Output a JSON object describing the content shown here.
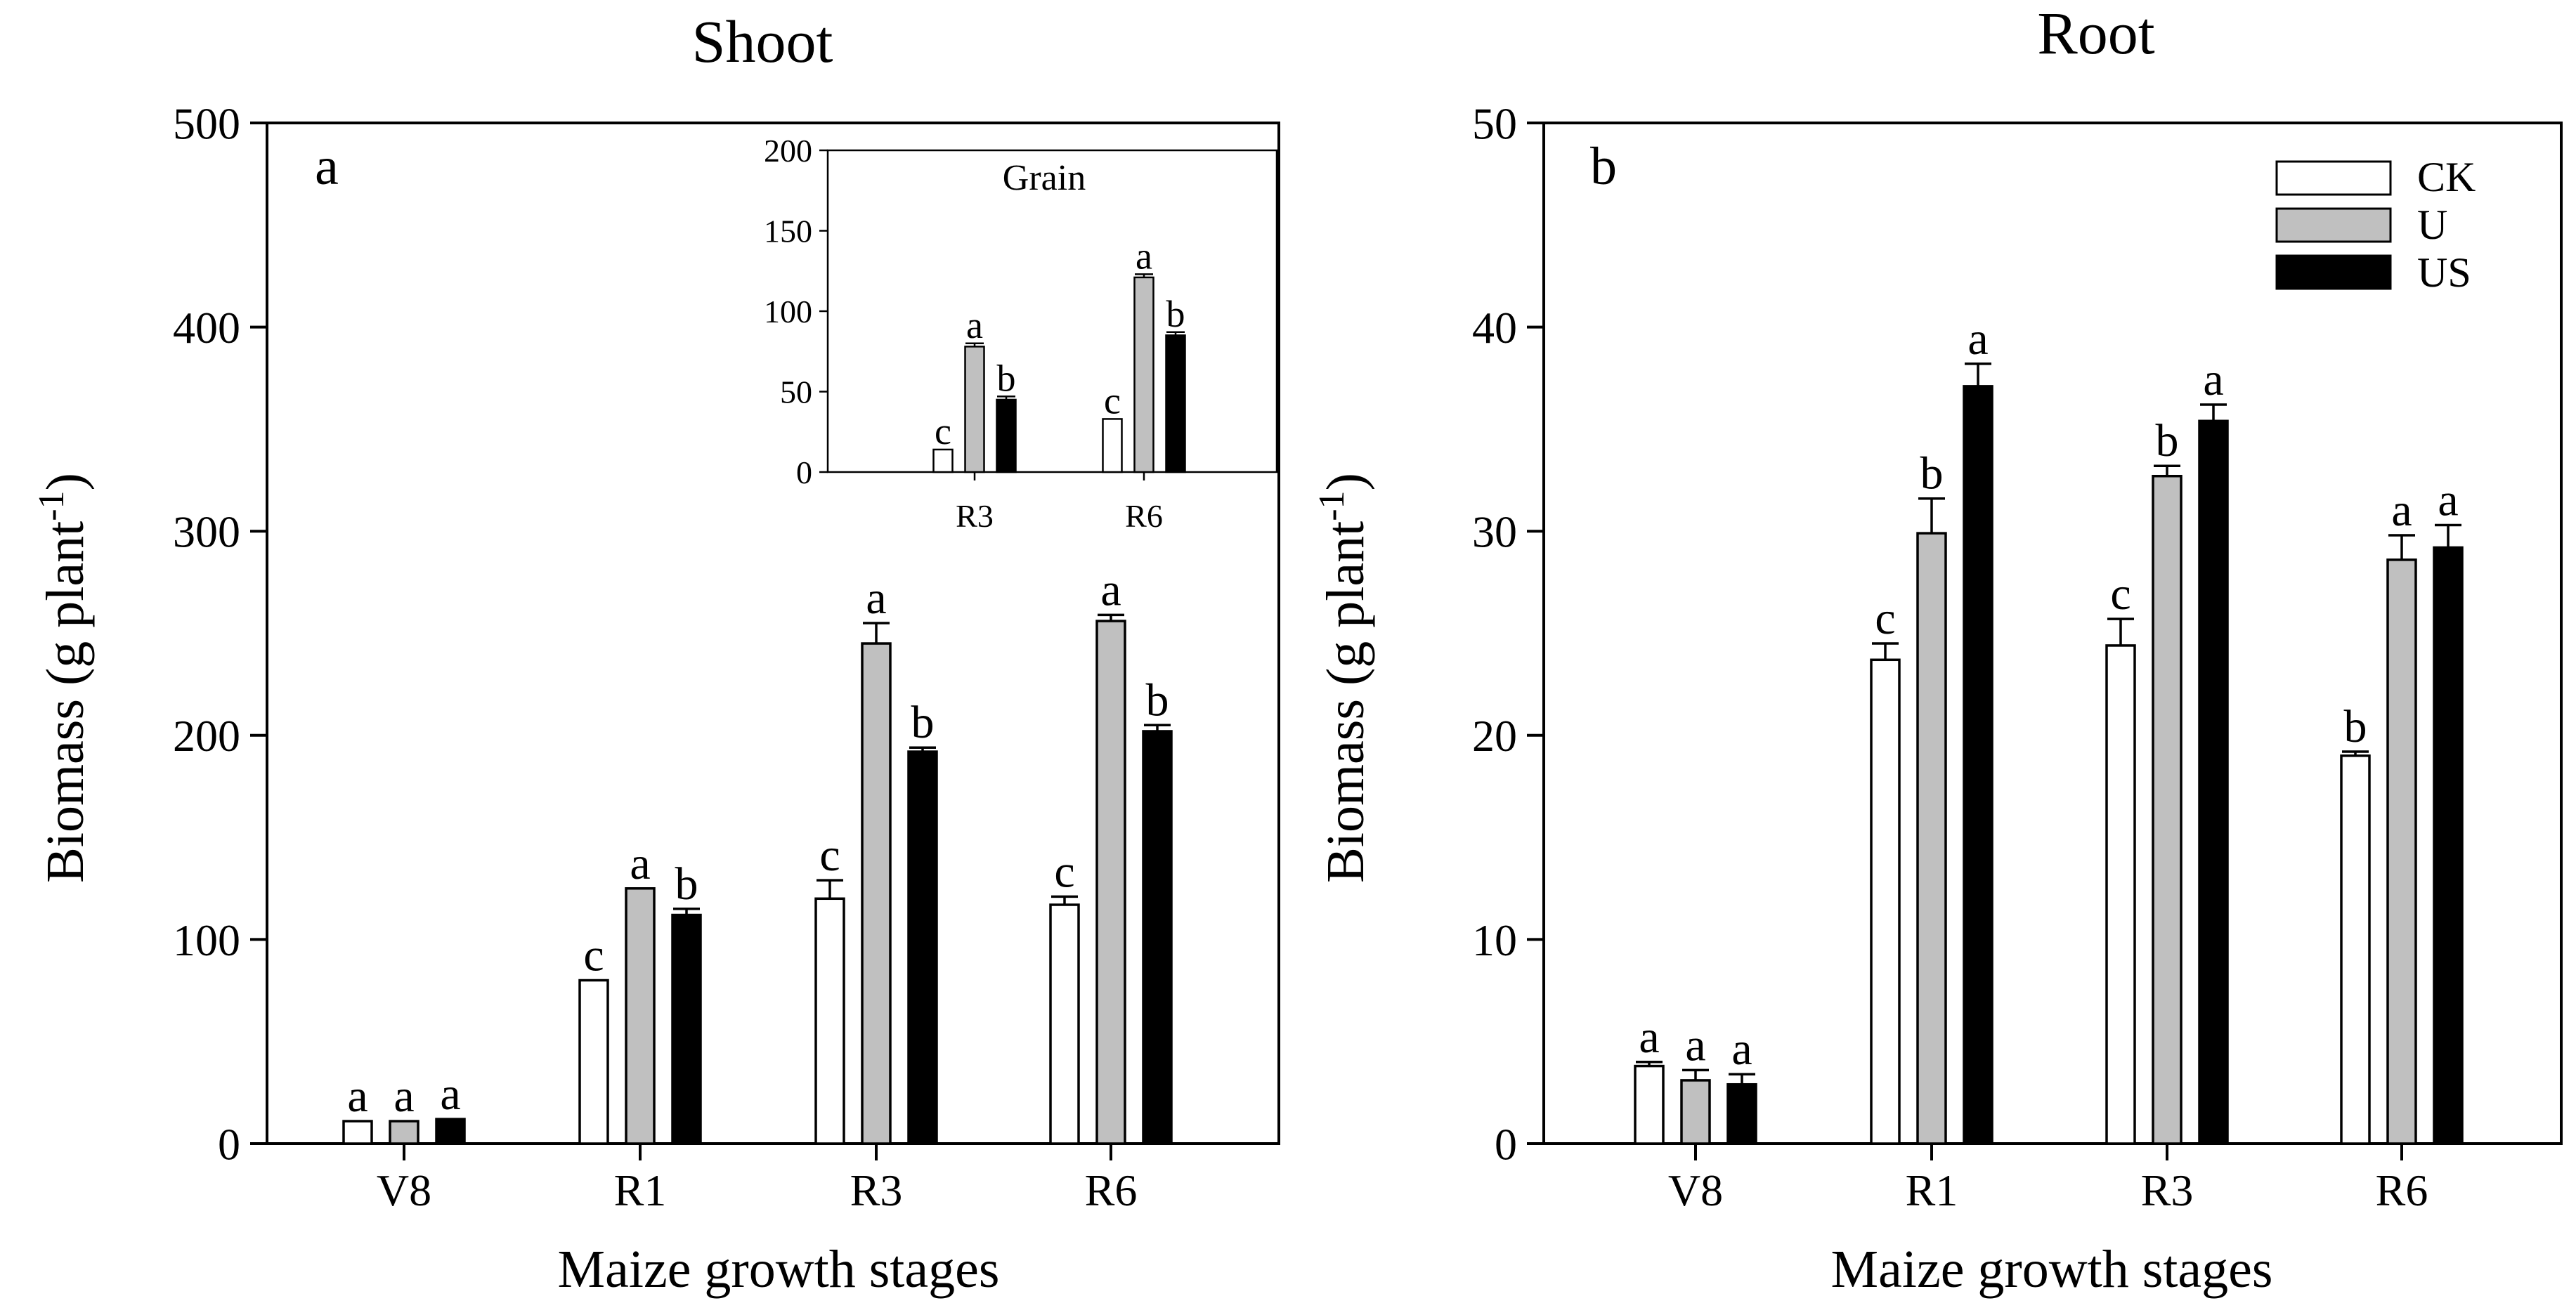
{
  "colors": {
    "CK": "#ffffff",
    "U": "#c0c0c0",
    "US": "#000000",
    "axis": "#000000"
  },
  "legend": {
    "entries": [
      {
        "key": "CK",
        "label": "CK"
      },
      {
        "key": "U",
        "label": "U"
      },
      {
        "key": "US",
        "label": "US"
      }
    ]
  },
  "chart_data": [
    {
      "id": "shoot",
      "type": "bar",
      "title": "Shoot",
      "panel_letter": "a",
      "xlabel": "Maize growth stages",
      "ylabel": "Biomass (g plant",
      "ylabel_sup": "-1",
      "ylabel_close": ")",
      "ylim": [
        0,
        500
      ],
      "yticks": [
        0,
        100,
        200,
        300,
        400,
        500
      ],
      "ytick_labels": [
        "0",
        "100",
        "200",
        "300",
        "400",
        "500"
      ],
      "categories": [
        "V8",
        "R1",
        "R3",
        "R6"
      ],
      "series": [
        {
          "name": "CK",
          "values": [
            11,
            80,
            120,
            117
          ],
          "errors": [
            0,
            0,
            9,
            4
          ],
          "letters": [
            "a",
            "c",
            "c",
            "c"
          ]
        },
        {
          "name": "U",
          "values": [
            11,
            125,
            245,
            256
          ],
          "errors": [
            0,
            0,
            10,
            3
          ],
          "letters": [
            "a",
            "a",
            "a",
            "a"
          ]
        },
        {
          "name": "US",
          "values": [
            12,
            112,
            192,
            202
          ],
          "errors": [
            0,
            3,
            2,
            3
          ],
          "letters": [
            "a",
            "b",
            "b",
            "b"
          ]
        }
      ]
    },
    {
      "id": "grain",
      "type": "bar",
      "title": "Grain",
      "inset_of": "shoot",
      "ylim": [
        0,
        200
      ],
      "yticks": [
        0,
        50,
        100,
        150,
        200
      ],
      "ytick_labels": [
        "0",
        "50",
        "100",
        "150",
        "200"
      ],
      "categories": [
        "R3",
        "R6"
      ],
      "series": [
        {
          "name": "CK",
          "values": [
            14,
            33
          ],
          "errors": [
            0,
            0
          ],
          "letters": [
            "c",
            "c"
          ]
        },
        {
          "name": "U",
          "values": [
            78,
            121
          ],
          "errors": [
            2,
            2
          ],
          "letters": [
            "a",
            "a"
          ]
        },
        {
          "name": "US",
          "values": [
            45,
            85
          ],
          "errors": [
            2,
            2
          ],
          "letters": [
            "b",
            "b"
          ]
        }
      ]
    },
    {
      "id": "root",
      "type": "bar",
      "title": "Root",
      "panel_letter": "b",
      "xlabel": "Maize growth stages",
      "ylabel": "Biomass (g plant",
      "ylabel_sup": "-1",
      "ylabel_close": ")",
      "ylim": [
        0,
        50
      ],
      "yticks": [
        0,
        10,
        20,
        30,
        40,
        50
      ],
      "ytick_labels": [
        "0",
        "10",
        "20",
        "30",
        "40",
        "50"
      ],
      "categories": [
        "V8",
        "R1",
        "R3",
        "R6"
      ],
      "series": [
        {
          "name": "CK",
          "values": [
            3.8,
            23.7,
            24.4,
            19.0
          ],
          "errors": [
            0.2,
            0.8,
            1.3,
            0.2
          ],
          "letters": [
            "a",
            "c",
            "c",
            "b"
          ]
        },
        {
          "name": "U",
          "values": [
            3.1,
            29.9,
            32.7,
            28.6
          ],
          "errors": [
            0.5,
            1.7,
            0.5,
            1.2
          ],
          "letters": [
            "a",
            "b",
            "b",
            "a"
          ]
        },
        {
          "name": "US",
          "values": [
            2.9,
            37.1,
            35.4,
            29.2
          ],
          "errors": [
            0.5,
            1.1,
            0.8,
            1.1
          ],
          "letters": [
            "a",
            "a",
            "a",
            "a"
          ]
        }
      ]
    }
  ]
}
